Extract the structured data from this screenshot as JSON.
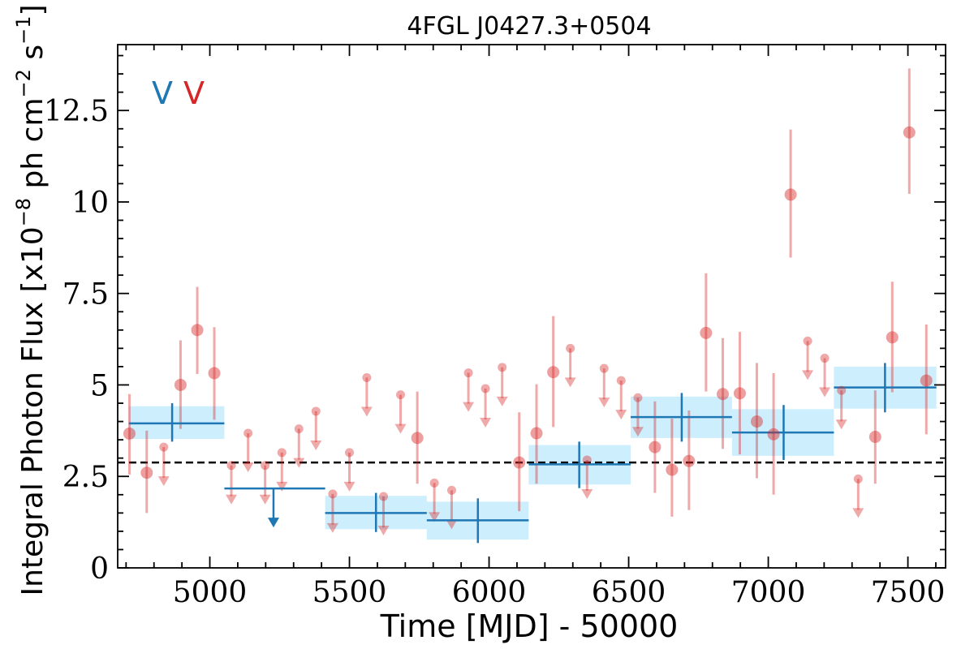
{
  "chart_data": {
    "type": "scatter",
    "title": "4FGL J0427.3+0504",
    "xlabel": "Time [MJD] - 50000",
    "ylabel": "Integral Photon Flux [x10",
    "ylabel_exp1": "−8",
    "ylabel_mid": " ph cm",
    "ylabel_exp2": "−2",
    "ylabel_mid2": " s",
    "ylabel_exp3": "−1",
    "ylabel_end": "]",
    "xlim": [
      4670,
      7635
    ],
    "ylim": [
      0,
      14.3
    ],
    "x_ticks": [
      5000,
      5500,
      6000,
      6500,
      7000,
      7500
    ],
    "x_tick_labels": [
      "5000",
      "5500",
      "6000",
      "6500",
      "7000",
      "7500"
    ],
    "y_ticks": [
      0,
      2.5,
      5,
      7.5,
      10,
      12.5
    ],
    "y_tick_labels": [
      "0",
      "2.5",
      "5",
      "7.5",
      "10",
      "12.5"
    ],
    "legend": [
      {
        "label": "V",
        "color": "#1f77b4"
      },
      {
        "label": "V",
        "color": "#d62728"
      }
    ],
    "reference_line": {
      "y": 2.88,
      "style": "dashed",
      "color": "#000000"
    },
    "series": [
      {
        "name": "V",
        "color": "#1f77b4",
        "band_color": "#cdeefc",
        "bins": [
          {
            "x0": 4710,
            "x1": 5052,
            "xc": 4865,
            "y": 3.95,
            "ylo": 3.45,
            "yhi": 4.5,
            "uplim": false
          },
          {
            "x0": 5052,
            "x1": 5413,
            "xc": 5228,
            "y": 2.17,
            "uplim": true
          },
          {
            "x0": 5413,
            "x1": 5777,
            "xc": 5595,
            "y": 1.5,
            "ylo": 0.98,
            "yhi": 2.05,
            "uplim": false
          },
          {
            "x0": 5777,
            "x1": 6142,
            "xc": 5960,
            "y": 1.3,
            "ylo": 0.68,
            "yhi": 1.9,
            "uplim": false
          },
          {
            "x0": 6142,
            "x1": 6507,
            "xc": 6323,
            "y": 2.83,
            "ylo": 2.18,
            "yhi": 3.45,
            "uplim": false
          },
          {
            "x0": 6507,
            "x1": 6870,
            "xc": 6690,
            "y": 4.12,
            "ylo": 3.45,
            "yhi": 4.78,
            "uplim": false
          },
          {
            "x0": 6870,
            "x1": 7235,
            "xc": 7055,
            "y": 3.7,
            "ylo": 2.95,
            "yhi": 4.45,
            "uplim": false
          },
          {
            "x0": 7235,
            "x1": 7602,
            "xc": 7418,
            "y": 4.93,
            "ylo": 4.25,
            "yhi": 5.6,
            "uplim": false
          }
        ]
      },
      {
        "name": "V",
        "color": "#d62728",
        "points": [
          {
            "x": 4712,
            "y": 3.67,
            "ylo": 2.55,
            "yhi": 4.75,
            "uplim": false
          },
          {
            "x": 4774,
            "y": 2.6,
            "ylo": 1.5,
            "yhi": 3.75,
            "uplim": false
          },
          {
            "x": 4835,
            "y": 3.3,
            "uplim": true
          },
          {
            "x": 4895,
            "y": 5.0,
            "ylo": 3.8,
            "yhi": 6.22,
            "uplim": false
          },
          {
            "x": 4955,
            "y": 6.5,
            "ylo": 5.3,
            "yhi": 7.68,
            "uplim": false
          },
          {
            "x": 5016,
            "y": 5.32,
            "ylo": 4.05,
            "yhi": 6.58,
            "uplim": false
          },
          {
            "x": 5077,
            "y": 2.8,
            "uplim": true
          },
          {
            "x": 5137,
            "y": 3.68,
            "uplim": true
          },
          {
            "x": 5198,
            "y": 2.8,
            "uplim": true
          },
          {
            "x": 5258,
            "y": 3.15,
            "uplim": true
          },
          {
            "x": 5319,
            "y": 3.8,
            "uplim": true
          },
          {
            "x": 5380,
            "y": 4.28,
            "uplim": true
          },
          {
            "x": 5440,
            "y": 2.02,
            "uplim": true
          },
          {
            "x": 5500,
            "y": 3.15,
            "uplim": true
          },
          {
            "x": 5562,
            "y": 5.2,
            "uplim": true
          },
          {
            "x": 5622,
            "y": 1.95,
            "uplim": true
          },
          {
            "x": 5683,
            "y": 4.73,
            "uplim": true
          },
          {
            "x": 5743,
            "y": 3.55,
            "ylo": 2.3,
            "yhi": 4.82,
            "uplim": false
          },
          {
            "x": 5804,
            "y": 2.32,
            "uplim": true
          },
          {
            "x": 5866,
            "y": 2.12,
            "uplim": true
          },
          {
            "x": 5926,
            "y": 5.33,
            "uplim": true
          },
          {
            "x": 5987,
            "y": 4.9,
            "uplim": true
          },
          {
            "x": 6047,
            "y": 5.48,
            "uplim": true
          },
          {
            "x": 6108,
            "y": 2.88,
            "ylo": 1.55,
            "yhi": 4.25,
            "uplim": false
          },
          {
            "x": 6170,
            "y": 3.68,
            "ylo": 2.3,
            "yhi": 5.02,
            "uplim": false
          },
          {
            "x": 6230,
            "y": 5.35,
            "ylo": 3.85,
            "yhi": 6.88,
            "uplim": false
          },
          {
            "x": 6291,
            "y": 6.0,
            "uplim": true
          },
          {
            "x": 6351,
            "y": 2.95,
            "uplim": true
          },
          {
            "x": 6412,
            "y": 5.45,
            "uplim": true
          },
          {
            "x": 6473,
            "y": 5.12,
            "uplim": true
          },
          {
            "x": 6533,
            "y": 4.65,
            "uplim": true
          },
          {
            "x": 6594,
            "y": 3.3,
            "ylo": 2.05,
            "yhi": 4.55,
            "uplim": false
          },
          {
            "x": 6655,
            "y": 2.68,
            "ylo": 1.4,
            "yhi": 4.08,
            "uplim": false
          },
          {
            "x": 6716,
            "y": 2.92,
            "ylo": 1.58,
            "yhi": 4.3,
            "uplim": false
          },
          {
            "x": 6777,
            "y": 6.42,
            "ylo": 4.82,
            "yhi": 8.05,
            "uplim": false
          },
          {
            "x": 6837,
            "y": 4.75,
            "ylo": 3.25,
            "yhi": 6.28,
            "uplim": false
          },
          {
            "x": 6898,
            "y": 4.77,
            "ylo": 3.1,
            "yhi": 6.45,
            "uplim": false
          },
          {
            "x": 6959,
            "y": 4.0,
            "ylo": 2.45,
            "yhi": 5.6,
            "uplim": false
          },
          {
            "x": 7019,
            "y": 3.65,
            "ylo": 2.0,
            "yhi": 5.32,
            "uplim": false
          },
          {
            "x": 7080,
            "y": 10.2,
            "ylo": 8.48,
            "yhi": 11.98,
            "uplim": false
          },
          {
            "x": 7141,
            "y": 6.2,
            "uplim": true
          },
          {
            "x": 7202,
            "y": 5.73,
            "uplim": true
          },
          {
            "x": 7262,
            "y": 4.85,
            "uplim": true
          },
          {
            "x": 7322,
            "y": 2.43,
            "uplim": true
          },
          {
            "x": 7383,
            "y": 3.58,
            "ylo": 2.3,
            "yhi": 4.85,
            "uplim": false
          },
          {
            "x": 7444,
            "y": 6.3,
            "ylo": 4.8,
            "yhi": 7.82,
            "uplim": false
          },
          {
            "x": 7505,
            "y": 11.9,
            "ylo": 10.22,
            "yhi": 13.65,
            "uplim": false
          },
          {
            "x": 7566,
            "y": 5.12,
            "ylo": 3.65,
            "yhi": 6.65,
            "uplim": false
          }
        ]
      }
    ]
  }
}
